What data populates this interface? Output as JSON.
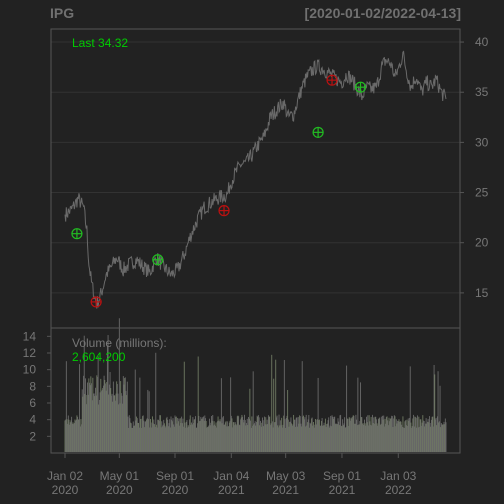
{
  "chart_data": {
    "type": "line",
    "symbol": "IPG",
    "date_range": "[2020-01-02/2022-04-13]",
    "last_label": "Last 34.32",
    "volume_label": "Volume (millions):",
    "volume_value": "2,604,200",
    "price_axis": {
      "ticks": [
        "15",
        "20",
        "25",
        "30",
        "35",
        "40"
      ],
      "range": [
        11.5,
        41.3
      ]
    },
    "volume_axis": {
      "ticks": [
        "2",
        "4",
        "6",
        "8",
        "10",
        "12",
        "14"
      ],
      "range": [
        0,
        15
      ]
    },
    "x_ticks": [
      {
        "month": "Jan 02",
        "year": "2020",
        "index": 0
      },
      {
        "month": "May 01",
        "year": "2020",
        "index": 82
      },
      {
        "month": "Sep 01",
        "year": "2020",
        "index": 166
      },
      {
        "month": "Jan 04",
        "year": "2021",
        "index": 251
      },
      {
        "month": "May 03",
        "year": "2021",
        "index": 333
      },
      {
        "month": "Sep 01",
        "year": "2021",
        "index": 418
      },
      {
        "month": "Jan 03",
        "year": "2022",
        "index": 503
      }
    ],
    "price_anchors": [
      [
        0,
        22.8
      ],
      [
        10,
        23.3
      ],
      [
        20,
        24.4
      ],
      [
        28,
        23.5
      ],
      [
        33,
        21.2
      ],
      [
        36,
        18.0
      ],
      [
        40,
        16.0
      ],
      [
        45,
        14.5
      ],
      [
        48,
        13.9
      ],
      [
        55,
        15.0
      ],
      [
        62,
        16.8
      ],
      [
        70,
        17.6
      ],
      [
        78,
        18.5
      ],
      [
        88,
        17.3
      ],
      [
        98,
        17.9
      ],
      [
        108,
        18.3
      ],
      [
        118,
        17.6
      ],
      [
        128,
        17.0
      ],
      [
        138,
        18.5
      ],
      [
        150,
        17.5
      ],
      [
        160,
        16.8
      ],
      [
        170,
        17.3
      ],
      [
        180,
        18.8
      ],
      [
        190,
        20.8
      ],
      [
        200,
        22.3
      ],
      [
        210,
        23.5
      ],
      [
        220,
        24.0
      ],
      [
        232,
        24.5
      ],
      [
        245,
        24.8
      ],
      [
        250,
        26.0
      ],
      [
        258,
        27.0
      ],
      [
        265,
        27.8
      ],
      [
        272,
        27.9
      ],
      [
        280,
        28.5
      ],
      [
        290,
        29.6
      ],
      [
        300,
        30.5
      ],
      [
        310,
        32.5
      ],
      [
        320,
        33.3
      ],
      [
        330,
        34.0
      ],
      [
        337,
        32.5
      ],
      [
        345,
        32.8
      ],
      [
        352,
        34.3
      ],
      [
        358,
        35.5
      ],
      [
        365,
        36.5
      ],
      [
        372,
        37.1
      ],
      [
        380,
        37.6
      ],
      [
        390,
        37.3
      ],
      [
        400,
        36.8
      ],
      [
        410,
        36.3
      ],
      [
        418,
        36.0
      ],
      [
        425,
        36.8
      ],
      [
        432,
        36.3
      ],
      [
        440,
        35.5
      ],
      [
        448,
        34.5
      ],
      [
        455,
        35.5
      ],
      [
        462,
        35.3
      ],
      [
        470,
        35.5
      ],
      [
        478,
        37.5
      ],
      [
        484,
        38.2
      ],
      [
        492,
        37.8
      ],
      [
        498,
        36.5
      ],
      [
        503,
        37.3
      ],
      [
        510,
        38.8
      ],
      [
        516,
        37.0
      ],
      [
        522,
        35.5
      ],
      [
        530,
        36.6
      ],
      [
        538,
        35.0
      ],
      [
        546,
        36.0
      ],
      [
        553,
        35.5
      ],
      [
        560,
        36.3
      ],
      [
        568,
        35.0
      ],
      [
        575,
        34.32
      ]
    ],
    "price_n": 576,
    "buy_signals": [
      {
        "index": 18,
        "price": 20.9
      },
      {
        "index": 140,
        "price": 18.3
      },
      {
        "index": 382,
        "price": 31.0
      },
      {
        "index": 446,
        "price": 35.5
      }
    ],
    "sell_signals": [
      {
        "index": 47,
        "price": 14.1
      },
      {
        "index": 240,
        "price": 23.2
      },
      {
        "index": 403,
        "price": 36.2
      }
    ],
    "colors": {
      "background": "#222222",
      "grid": "#333333",
      "frame": "#555555",
      "axis_text": "#777777",
      "price_line": "#6a6a6a",
      "last_text": "#00cc00",
      "buy_marker": "#22bb22",
      "sell_marker": "#bb1111"
    }
  }
}
